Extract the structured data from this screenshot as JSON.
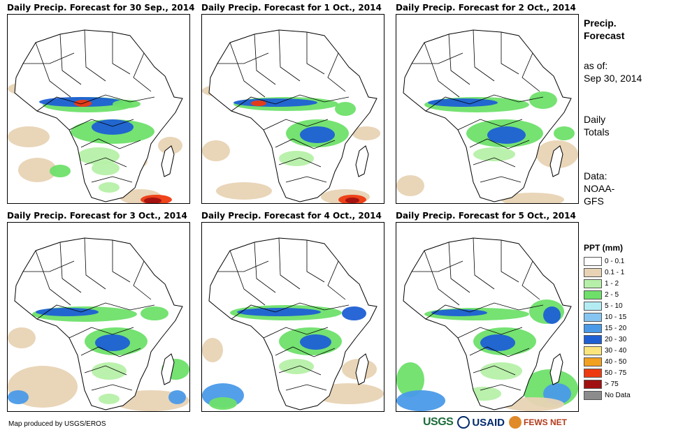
{
  "panels": [
    {
      "title": "Daily Precip. Forecast for 30 Sep., 2014"
    },
    {
      "title": "Daily Precip. Forecast for 1 Oct., 2014"
    },
    {
      "title": "Daily Precip. Forecast for 2 Oct., 2014"
    },
    {
      "title": "Daily Precip. Forecast for 3 Oct., 2014"
    },
    {
      "title": "Daily Precip. Forecast for 4 Oct., 2014"
    },
    {
      "title": "Daily Precip. Forecast for 5 Oct., 2014"
    }
  ],
  "side": {
    "title_line1": "Precip.",
    "title_line2": "Forecast",
    "asof_line1": "as of:",
    "asof_line2": "Sep 30, 2014",
    "totals_line1": "Daily",
    "totals_line2": "Totals",
    "data_line1": "Data:",
    "data_line2": "NOAA-",
    "data_line3": "GFS"
  },
  "legend": {
    "title": "PPT (mm)",
    "items": [
      {
        "label": "0 - 0.1",
        "color": "#ffffff"
      },
      {
        "label": "0.1 - 1",
        "color": "#e8d3b4"
      },
      {
        "label": "1 - 2",
        "color": "#b6f0a8"
      },
      {
        "label": "2 - 5",
        "color": "#6ee06a"
      },
      {
        "label": "5 - 10",
        "color": "#b4ecf4"
      },
      {
        "label": "10 - 15",
        "color": "#86c4f2"
      },
      {
        "label": "15 - 20",
        "color": "#4a9ae8"
      },
      {
        "label": "20 - 30",
        "color": "#1e5fd4"
      },
      {
        "label": "30 - 40",
        "color": "#fbe47c"
      },
      {
        "label": "40 - 50",
        "color": "#f2a020"
      },
      {
        "label": "50 - 75",
        "color": "#ee3a10"
      },
      {
        "label": "> 75",
        "color": "#a01010"
      },
      {
        "label": "No Data",
        "color": "#8c8c8c"
      }
    ]
  },
  "credit": "Map produced by USGS/EROS",
  "logos": {
    "usgs": "USGS",
    "usaid": "USAID",
    "fews": "FEWS NET"
  }
}
